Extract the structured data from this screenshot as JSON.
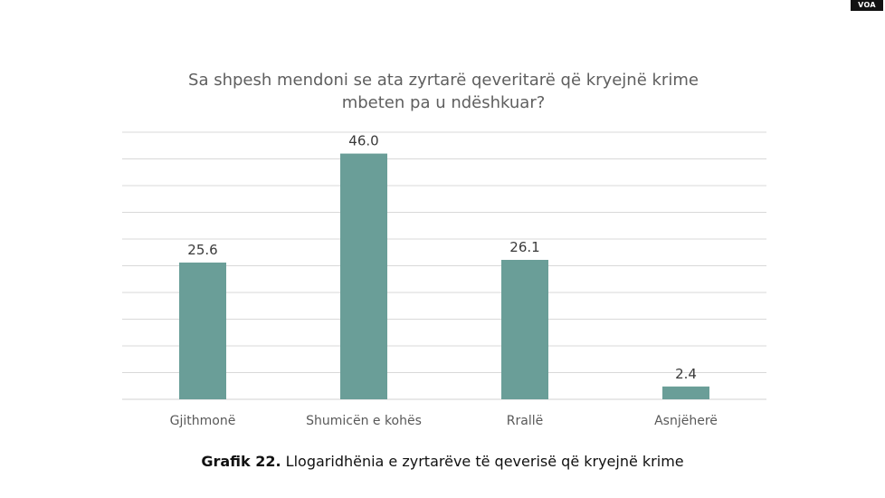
{
  "watermark": "VOA",
  "chart_data": {
    "type": "bar",
    "title_lines": [
      "Sa shpesh mendoni se ata zyrtarë qeveritarë që kryejnë krime",
      "mbeten pa u ndëshkuar?"
    ],
    "categories": [
      "Gjithmonë",
      "Shumicën e kohës",
      "Rrallë",
      "Asnjëherë"
    ],
    "values": [
      25.6,
      46.0,
      26.1,
      2.4
    ],
    "data_labels": [
      "25.6",
      "46.0",
      "26.1",
      "2.4"
    ],
    "ylim": [
      0,
      50
    ],
    "y_gridline_step": 5,
    "grid": true,
    "bar_color": "#6a9e98",
    "gridline_color": "#d9d9d9",
    "legend": "none"
  },
  "caption": {
    "label": "Grafik 22.",
    "text": " Llogaridhënia e zyrtarëve të qeverisë që kryejnë krime"
  }
}
